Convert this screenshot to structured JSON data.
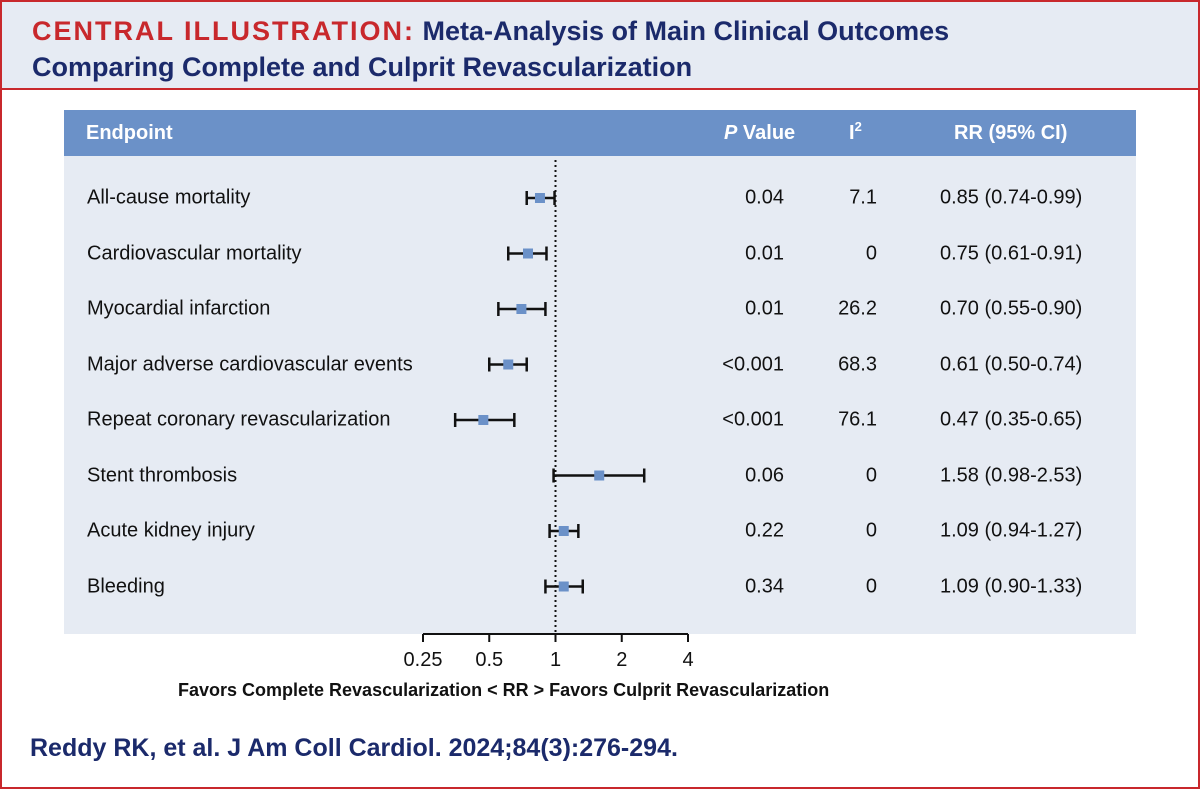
{
  "title": {
    "label": "CENTRAL ILLUSTRATION:",
    "line1": "Meta-Analysis of Main Clinical Outcomes",
    "line2": "Comparing Complete and Culprit Revascularization"
  },
  "colors": {
    "accent_red": "#c8282c",
    "navy": "#1b2a6b",
    "header_blue": "#6b91c8",
    "panel_bg": "#e6ebf3",
    "marker": "#6b91c8"
  },
  "chart_data": {
    "type": "forest",
    "columns": {
      "endpoint": "Endpoint",
      "p_value": "P Value",
      "i2_base": "I",
      "i2_sup": "2",
      "rr": "RR (95% CI)"
    },
    "rows": [
      {
        "endpoint": "All-cause mortality",
        "p": "0.04",
        "i2": "7.1",
        "rr_text": "0.85 (0.74-0.99)",
        "rr": 0.85,
        "lo": 0.74,
        "hi": 0.99
      },
      {
        "endpoint": "Cardiovascular mortality",
        "p": "0.01",
        "i2": "0",
        "rr_text": "0.75 (0.61-0.91)",
        "rr": 0.75,
        "lo": 0.61,
        "hi": 0.91
      },
      {
        "endpoint": "Myocardial infarction",
        "p": "0.01",
        "i2": "26.2",
        "rr_text": "0.70 (0.55-0.90)",
        "rr": 0.7,
        "lo": 0.55,
        "hi": 0.9
      },
      {
        "endpoint": "Major adverse cardiovascular events",
        "p": "<0.001",
        "i2": "68.3",
        "rr_text": "0.61 (0.50-0.74)",
        "rr": 0.61,
        "lo": 0.5,
        "hi": 0.74
      },
      {
        "endpoint": "Repeat coronary revascularization",
        "p": "<0.001",
        "i2": "76.1",
        "rr_text": "0.47 (0.35-0.65)",
        "rr": 0.47,
        "lo": 0.35,
        "hi": 0.65
      },
      {
        "endpoint": "Stent thrombosis",
        "p": "0.06",
        "i2": "0",
        "rr_text": "1.58 (0.98-2.53)",
        "rr": 1.58,
        "lo": 0.98,
        "hi": 2.53
      },
      {
        "endpoint": "Acute kidney injury",
        "p": "0.22",
        "i2": "0",
        "rr_text": "1.09 (0.94-1.27)",
        "rr": 1.09,
        "lo": 0.94,
        "hi": 1.27
      },
      {
        "endpoint": "Bleeding",
        "p": "0.34",
        "i2": "0",
        "rr_text": "1.09 (0.90-1.33)",
        "rr": 1.09,
        "lo": 0.9,
        "hi": 1.33
      }
    ],
    "x_scale": "log",
    "x_ticks": [
      0.25,
      0.5,
      1,
      2,
      4
    ],
    "x_tick_labels": [
      "0.25",
      "0.5",
      "1",
      "2",
      "4"
    ],
    "xlim": [
      0.25,
      4
    ],
    "reference_line": 1,
    "xlabel": "Favors Complete Revascularization < RR > Favors Culprit Revascularization"
  },
  "citation": "Reddy RK, et al. J Am Coll Cardiol. 2024;84(3):276-294."
}
